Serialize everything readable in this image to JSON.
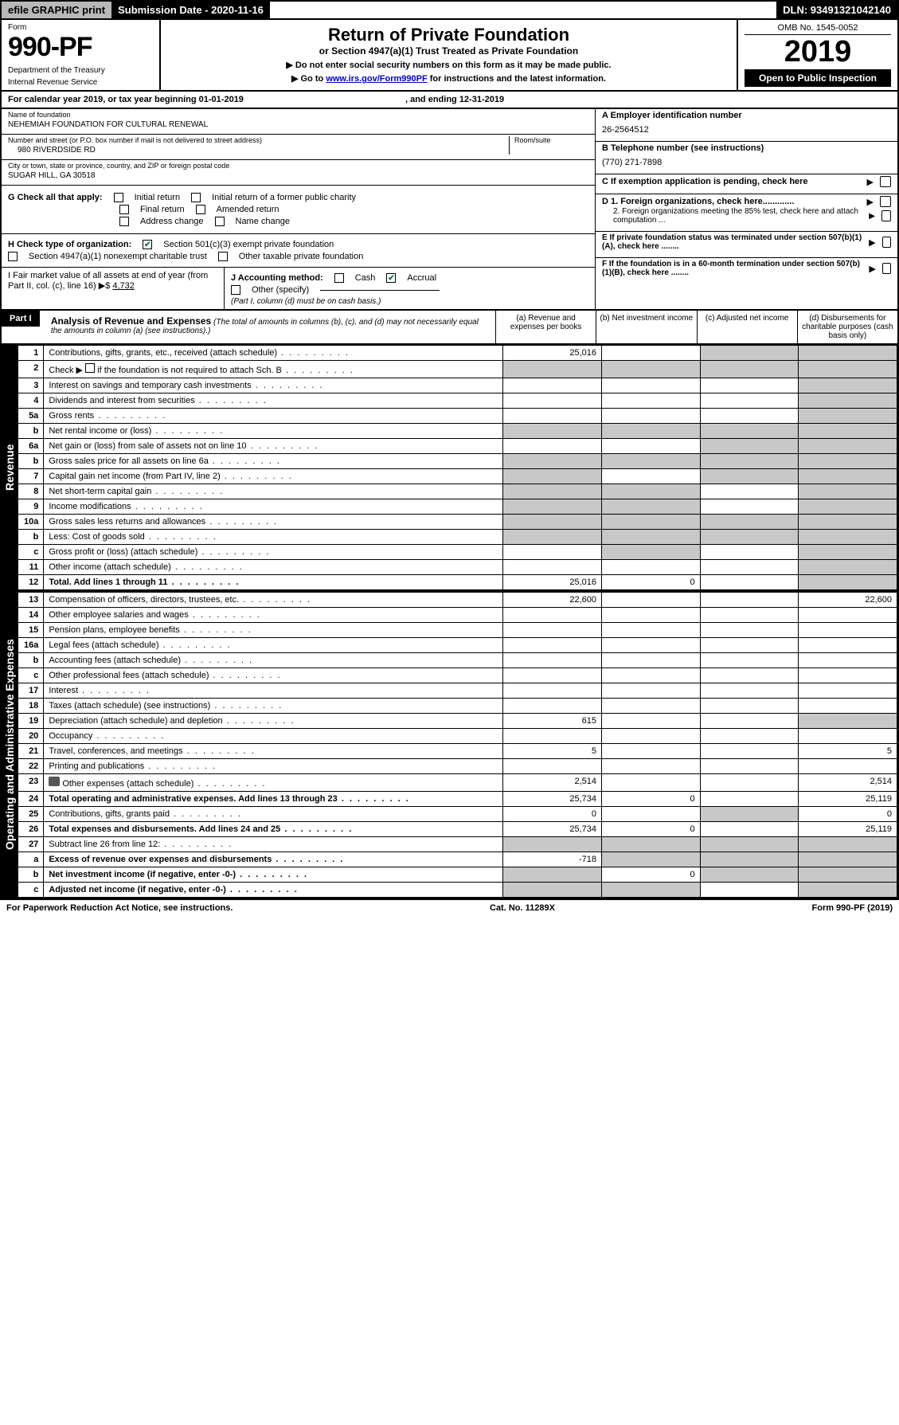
{
  "topbar": {
    "efile": "efile GRAPHIC print",
    "subdate": "Submission Date - 2020-11-16",
    "dln": "DLN: 93491321042140"
  },
  "header": {
    "form_label": "Form",
    "form_number": "990-PF",
    "dept": "Department of the Treasury",
    "irs": "Internal Revenue Service",
    "title": "Return of Private Foundation",
    "subtitle": "or Section 4947(a)(1) Trust Treated as Private Foundation",
    "instr1": "▶ Do not enter social security numbers on this form as it may be made public.",
    "instr2_pre": "▶ Go to ",
    "instr2_link": "www.irs.gov/Form990PF",
    "instr2_post": " for instructions and the latest information.",
    "omb": "OMB No. 1545-0052",
    "year": "2019",
    "open": "Open to Public Inspection"
  },
  "calendar": {
    "pre": "For calendar year 2019, or tax year beginning 01-01-2019",
    "mid": ", and ending 12-31-2019"
  },
  "entity": {
    "name_label": "Name of foundation",
    "name": "NEHEMIAH FOUNDATION FOR CULTURAL RENEWAL",
    "addr_label": "Number and street (or P.O. box number if mail is not delivered to street address)",
    "room_label": "Room/suite",
    "addr": "980 RIVERDSIDE RD",
    "city_label": "City or town, state or province, country, and ZIP or foreign postal code",
    "city": "SUGAR HILL, GA  30518",
    "ein_label": "A Employer identification number",
    "ein": "26-2564512",
    "phone_label": "B Telephone number (see instructions)",
    "phone": "(770) 271-7898",
    "c_label": "C If exemption application is pending, check here",
    "d1": "D 1. Foreign organizations, check here.............",
    "d2": "2. Foreign organizations meeting the 85% test, check here and attach computation ...",
    "e_label": "E  If private foundation status was terminated under section 507(b)(1)(A), check here ........",
    "f_label": "F  If the foundation is in a 60-month termination under section 507(b)(1)(B), check here ........"
  },
  "g": {
    "label": "G Check all that apply:",
    "initial": "Initial return",
    "initial_former": "Initial return of a former public charity",
    "final": "Final return",
    "amended": "Amended return",
    "addr_change": "Address change",
    "name_change": "Name change"
  },
  "h": {
    "label": "H Check type of organization:",
    "opt1": "Section 501(c)(3) exempt private foundation",
    "opt2": "Section 4947(a)(1) nonexempt charitable trust",
    "opt3": "Other taxable private foundation"
  },
  "i": {
    "label": "I Fair market value of all assets at end of year (from Part II, col. (c), line 16) ▶$",
    "value": "4,732"
  },
  "j": {
    "label": "J Accounting method:",
    "cash": "Cash",
    "accrual": "Accrual",
    "other": "Other (specify)",
    "note": "(Part I, column (d) must be on cash basis.)"
  },
  "part1": {
    "tab": "Part I",
    "title": "Analysis of Revenue and Expenses",
    "title_note": "(The total of amounts in columns (b), (c), and (d) may not necessarily equal the amounts in column (a) (see instructions).)",
    "col_a": "(a)   Revenue and expenses per books",
    "col_b": "(b)  Net investment income",
    "col_c": "(c)  Adjusted net income",
    "col_d": "(d)  Disbursements for charitable purposes (cash basis only)"
  },
  "revenue_label": "Revenue",
  "expenses_label": "Operating and Administrative Expenses",
  "rows": {
    "r1": {
      "n": "1",
      "d": "Contributions, gifts, grants, etc., received (attach schedule)",
      "a": "25,016",
      "c_shade": true,
      "d_shade": true
    },
    "r2": {
      "n": "2",
      "d_pre": "Check ▶",
      "d_post": " if the foundation is not required to attach Sch. B",
      "a_shade": true,
      "b_shade": true,
      "c_shade": true,
      "d_shade": true
    },
    "r3": {
      "n": "3",
      "d": "Interest on savings and temporary cash investments",
      "d_shade": true
    },
    "r4": {
      "n": "4",
      "d": "Dividends and interest from securities",
      "d_shade": true
    },
    "r5a": {
      "n": "5a",
      "d": "Gross rents",
      "d_shade": true
    },
    "r5b": {
      "n": "b",
      "d": "Net rental income or (loss)",
      "a_shade": true,
      "b_shade": true,
      "c_shade": true,
      "d_shade": true
    },
    "r6a": {
      "n": "6a",
      "d": "Net gain or (loss) from sale of assets not on line 10",
      "c_shade": true,
      "d_shade": true
    },
    "r6b": {
      "n": "b",
      "d": "Gross sales price for all assets on line 6a",
      "a_shade": true,
      "b_shade": true,
      "c_shade": true,
      "d_shade": true
    },
    "r7": {
      "n": "7",
      "d": "Capital gain net income (from Part IV, line 2)",
      "a_shade": true,
      "c_shade": true,
      "d_shade": true
    },
    "r8": {
      "n": "8",
      "d": "Net short-term capital gain",
      "a_shade": true,
      "b_shade": true,
      "d_shade": true
    },
    "r9": {
      "n": "9",
      "d": "Income modifications",
      "a_shade": true,
      "b_shade": true,
      "d_shade": true
    },
    "r10a": {
      "n": "10a",
      "d": "Gross sales less returns and allowances",
      "a_shade": true,
      "b_shade": true,
      "c_shade": true,
      "d_shade": true
    },
    "r10b": {
      "n": "b",
      "d": "Less: Cost of goods sold",
      "a_shade": true,
      "b_shade": true,
      "c_shade": true,
      "d_shade": true
    },
    "r10c": {
      "n": "c",
      "d": "Gross profit or (loss) (attach schedule)",
      "b_shade": true,
      "d_shade": true
    },
    "r11": {
      "n": "11",
      "d": "Other income (attach schedule)",
      "d_shade": true
    },
    "r12": {
      "n": "12",
      "d": "Total. Add lines 1 through 11",
      "a": "25,016",
      "b": "0",
      "d_shade": true,
      "bold": true
    },
    "r13": {
      "n": "13",
      "d": "Compensation of officers, directors, trustees, etc.",
      "a": "22,600",
      "dd": "22,600"
    },
    "r14": {
      "n": "14",
      "d": "Other employee salaries and wages"
    },
    "r15": {
      "n": "15",
      "d": "Pension plans, employee benefits"
    },
    "r16a": {
      "n": "16a",
      "d": "Legal fees (attach schedule)"
    },
    "r16b": {
      "n": "b",
      "d": "Accounting fees (attach schedule)"
    },
    "r16c": {
      "n": "c",
      "d": "Other professional fees (attach schedule)"
    },
    "r17": {
      "n": "17",
      "d": "Interest"
    },
    "r18": {
      "n": "18",
      "d": "Taxes (attach schedule) (see instructions)"
    },
    "r19": {
      "n": "19",
      "d": "Depreciation (attach schedule) and depletion",
      "a": "615",
      "d_shade": true
    },
    "r20": {
      "n": "20",
      "d": "Occupancy"
    },
    "r21": {
      "n": "21",
      "d": "Travel, conferences, and meetings",
      "a": "5",
      "dd": "5"
    },
    "r22": {
      "n": "22",
      "d": "Printing and publications"
    },
    "r23": {
      "n": "23",
      "d": "Other expenses (attach schedule)",
      "a": "2,514",
      "dd": "2,514",
      "attach": true
    },
    "r24": {
      "n": "24",
      "d": "Total operating and administrative expenses. Add lines 13 through 23",
      "a": "25,734",
      "b": "0",
      "dd": "25,119",
      "bold": true
    },
    "r25": {
      "n": "25",
      "d": "Contributions, gifts, grants paid",
      "a": "0",
      "c_shade": true,
      "dd": "0"
    },
    "r26": {
      "n": "26",
      "d": "Total expenses and disbursements. Add lines 24 and 25",
      "a": "25,734",
      "b": "0",
      "dd": "25,119",
      "bold": true
    },
    "r27": {
      "n": "27",
      "d": "Subtract line 26 from line 12:",
      "a_shade": true,
      "b_shade": true,
      "c_shade": true,
      "d_shade": true
    },
    "r27a": {
      "n": "a",
      "d": "Excess of revenue over expenses and disbursements",
      "a": "-718",
      "b_shade": true,
      "c_shade": true,
      "d_shade": true,
      "bold": true
    },
    "r27b": {
      "n": "b",
      "d": "Net investment income (if negative, enter -0-)",
      "a_shade": true,
      "b": "0",
      "c_shade": true,
      "d_shade": true,
      "bold": true
    },
    "r27c": {
      "n": "c",
      "d": "Adjusted net income (if negative, enter -0-)",
      "a_shade": true,
      "b_shade": true,
      "d_shade": true,
      "bold": true
    }
  },
  "footer": {
    "left": "For Paperwork Reduction Act Notice, see instructions.",
    "mid": "Cat. No. 11289X",
    "right": "Form 990-PF (2019)"
  }
}
